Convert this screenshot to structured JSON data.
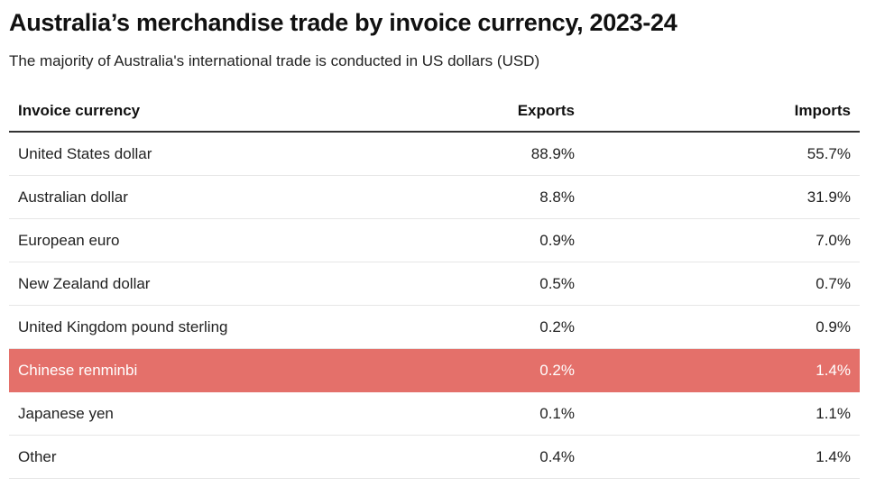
{
  "header": {
    "title": "Australia’s merchandise trade by invoice currency, 2023-24",
    "subtitle": "The majority of Australia's international trade is conducted in US dollars (USD)"
  },
  "table": {
    "columns": [
      "Invoice currency",
      "Exports",
      "Imports"
    ],
    "rows": [
      {
        "currency": "United States dollar",
        "exports": "88.9%",
        "imports": "55.7%",
        "highlight": false
      },
      {
        "currency": "Australian dollar",
        "exports": "8.8%",
        "imports": "31.9%",
        "highlight": false
      },
      {
        "currency": "European euro",
        "exports": "0.9%",
        "imports": "7.0%",
        "highlight": false
      },
      {
        "currency": "New Zealand dollar",
        "exports": "0.5%",
        "imports": "0.7%",
        "highlight": false
      },
      {
        "currency": "United Kingdom pound sterling",
        "exports": "0.2%",
        "imports": "0.9%",
        "highlight": false
      },
      {
        "currency": "Chinese renminbi",
        "exports": "0.2%",
        "imports": "1.4%",
        "highlight": true
      },
      {
        "currency": "Japanese yen",
        "exports": "0.1%",
        "imports": "1.1%",
        "highlight": false
      },
      {
        "currency": "Other",
        "exports": "0.4%",
        "imports": "1.4%",
        "highlight": false
      }
    ]
  },
  "colors": {
    "highlight": "#e4706a"
  },
  "chart_data": {
    "type": "table",
    "title": "Australia’s merchandise trade by invoice currency, 2023-24",
    "subtitle": "The majority of Australia's international trade is conducted in US dollars (USD)",
    "columns": [
      "Invoice currency",
      "Exports",
      "Imports"
    ],
    "categories": [
      "United States dollar",
      "Australian dollar",
      "European euro",
      "New Zealand dollar",
      "United Kingdom pound sterling",
      "Chinese renminbi",
      "Japanese yen",
      "Other"
    ],
    "series": [
      {
        "name": "Exports",
        "values": [
          88.9,
          8.8,
          0.9,
          0.5,
          0.2,
          0.2,
          0.1,
          0.4
        ]
      },
      {
        "name": "Imports",
        "values": [
          55.7,
          31.9,
          7.0,
          0.7,
          0.9,
          1.4,
          1.1,
          1.4
        ]
      }
    ],
    "unit": "%",
    "highlighted_category": "Chinese renminbi"
  }
}
